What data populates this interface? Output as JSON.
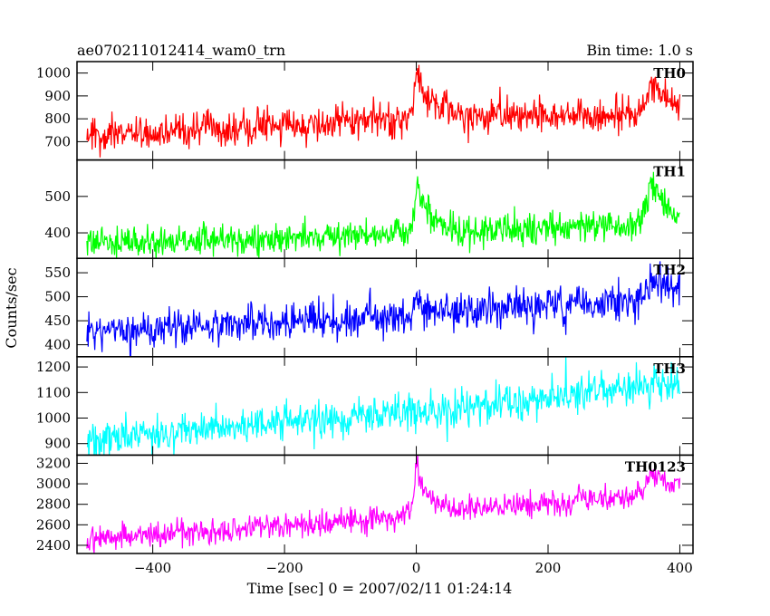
{
  "header": {
    "obs_id": "ae070211012414_wam0_trn",
    "bin_time": "Bin time: 1.0 s"
  },
  "chart_data": {
    "type": "line",
    "xlabel": "Time [sec] 0 = 2007/02/11 01:24:14",
    "ylabel": "Counts/sec",
    "xlim": [
      -515,
      420
    ],
    "x_ticks": [
      -400,
      -200,
      0,
      200,
      400
    ],
    "x_tick_labels": [
      "−400",
      "−200",
      "0",
      "200",
      "400"
    ],
    "bin_seconds": 1.0,
    "panels": [
      {
        "name": "TH0",
        "color": "#ff0000",
        "ylim": [
          620,
          1050
        ],
        "y_ticks": [
          700,
          800,
          900,
          1000
        ],
        "y_tick_labels": [
          "700",
          "800",
          "900",
          "1000"
        ],
        "baseline": [
          [
            -500,
            725
          ],
          [
            -300,
            755
          ],
          [
            -100,
            790
          ],
          [
            100,
            810
          ],
          [
            300,
            820
          ],
          [
            400,
            840
          ]
        ],
        "noise": 38,
        "peaks": [
          {
            "t": 0,
            "amp": 200,
            "rise": 4,
            "decay": 22
          },
          {
            "t": 355,
            "amp": 130,
            "rise": 8,
            "decay": 28
          }
        ]
      },
      {
        "name": "TH1",
        "color": "#00ff00",
        "ylim": [
          330,
          600
        ],
        "y_ticks": [
          400,
          500
        ],
        "y_tick_labels": [
          "400",
          "500"
        ],
        "baseline": [
          [
            -500,
            375
          ],
          [
            -300,
            380
          ],
          [
            -100,
            392
          ],
          [
            100,
            405
          ],
          [
            300,
            420
          ],
          [
            400,
            425
          ]
        ],
        "noise": 22,
        "peaks": [
          {
            "t": 0,
            "amp": 140,
            "rise": 4,
            "decay": 20
          },
          {
            "t": 355,
            "amp": 115,
            "rise": 8,
            "decay": 26
          }
        ]
      },
      {
        "name": "TH2",
        "color": "#0000ff",
        "ylim": [
          375,
          580
        ],
        "y_ticks": [
          400,
          450,
          500,
          550
        ],
        "y_tick_labels": [
          "400",
          "450",
          "500",
          "550"
        ],
        "baseline": [
          [
            -500,
            425
          ],
          [
            -300,
            440
          ],
          [
            -100,
            455
          ],
          [
            100,
            475
          ],
          [
            300,
            490
          ],
          [
            400,
            515
          ]
        ],
        "noise": 20,
        "peaks": [
          {
            "t": 0,
            "amp": 45,
            "rise": 3,
            "decay": 12
          },
          {
            "t": 365,
            "amp": 25,
            "rise": 10,
            "decay": 25
          }
        ]
      },
      {
        "name": "TH3",
        "color": "#00ffff",
        "ylim": [
          855,
          1240
        ],
        "y_ticks": [
          900,
          1000,
          1100,
          1200
        ],
        "y_tick_labels": [
          "900",
          "1000",
          "1100",
          "1200"
        ],
        "baseline": [
          [
            -500,
            920
          ],
          [
            -300,
            960
          ],
          [
            -100,
            1000
          ],
          [
            100,
            1050
          ],
          [
            300,
            1110
          ],
          [
            400,
            1145
          ]
        ],
        "noise": 38,
        "peaks": []
      },
      {
        "name": "TH0123",
        "color": "#ff00ff",
        "ylim": [
          2320,
          3280
        ],
        "y_ticks": [
          2400,
          2600,
          2800,
          3000,
          3200
        ],
        "y_tick_labels": [
          "2400",
          "2600",
          "2800",
          "3000",
          "3200"
        ],
        "baseline": [
          [
            -500,
            2460
          ],
          [
            -300,
            2540
          ],
          [
            -100,
            2640
          ],
          [
            100,
            2760
          ],
          [
            300,
            2870
          ],
          [
            400,
            2960
          ]
        ],
        "noise": 60,
        "peaks": [
          {
            "t": 0,
            "amp": 500,
            "rise": 4,
            "decay": 20
          },
          {
            "t": 355,
            "amp": 230,
            "rise": 8,
            "decay": 24
          }
        ]
      }
    ]
  }
}
